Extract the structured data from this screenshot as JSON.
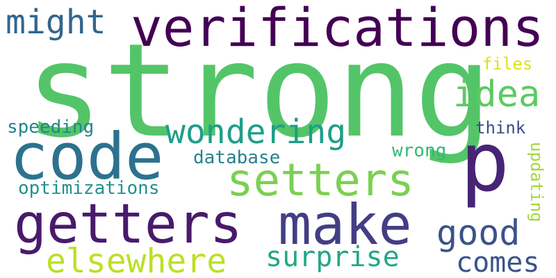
{
  "words": [
    {
      "text": "strong",
      "color": "#53c568"
    },
    {
      "text": "verifications",
      "color": "#440154"
    },
    {
      "text": "code",
      "color": "#2c728e"
    },
    {
      "text": "p",
      "color": "#482475"
    },
    {
      "text": "getters",
      "color": "#481a6c"
    },
    {
      "text": "make",
      "color": "#433e85"
    },
    {
      "text": "setters",
      "color": "#7ad151"
    },
    {
      "text": "wondering",
      "color": "#1f9e89"
    },
    {
      "text": "elsewhere",
      "color": "#bddf26"
    },
    {
      "text": "might",
      "color": "#31668e"
    },
    {
      "text": "idea",
      "color": "#5ec962"
    },
    {
      "text": "good",
      "color": "#3b528b"
    },
    {
      "text": "surprise",
      "color": "#22a884"
    },
    {
      "text": "comes",
      "color": "#3b528b"
    },
    {
      "text": "speeding",
      "color": "#25848e"
    },
    {
      "text": "database",
      "color": "#26828e"
    },
    {
      "text": "optimizations",
      "color": "#21918c"
    },
    {
      "text": "wrong",
      "color": "#35b779"
    },
    {
      "text": "think",
      "color": "#3e4989"
    },
    {
      "text": "files",
      "color": "#dde318"
    },
    {
      "text": "updating",
      "color": "#a0da39"
    }
  ]
}
